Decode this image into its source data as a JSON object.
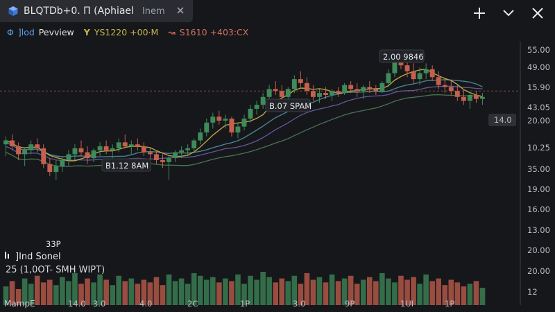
{
  "tab": {
    "title": "BLQTDb+0. Π (Aphiael",
    "subtitle": "Inem",
    "icon": "cube-icon"
  },
  "window_controls": [
    "plus-icon",
    "chevron-down-icon",
    "close-icon"
  ],
  "legend": {
    "marker": "Φ",
    "symbol": "]lod",
    "label": "Pevview",
    "ma1": "YS1220 +00·M",
    "ma2": "S1610 +403:CX"
  },
  "colors": {
    "background": "#16171b",
    "up": "#3f8b5a",
    "down": "#c6604e",
    "ma_yellow": "#c8b548",
    "ma_teal": "#4f8fa0",
    "ma_green": "#4f7f59",
    "ma_purple": "#6b5fa8",
    "ref_line": "#a35a3f",
    "price_tag": "#2e3036"
  },
  "annotations": [
    {
      "label": "2.00 9846"
    },
    {
      "label": "B.07 SPAM"
    },
    {
      "label": "B1.12 8AM"
    }
  ],
  "low_label": "33P",
  "price_axis": [
    "55.00",
    "49.00",
    "15.90",
    "43.05",
    "20.00",
    "10.25",
    "35.00",
    "19.00",
    "16.00",
    "13.00",
    "20.00",
    "20.00",
    "12"
  ],
  "last_price_tag": "14.0",
  "time_axis": [
    "14.0",
    "3.0",
    "4.0",
    "2C",
    "1P",
    "3.0",
    "9P",
    "1UI",
    "1P"
  ],
  "indicator": {
    "icon": "indicator-icon",
    "name": "]Ind Sonel",
    "values": "25 (1,0OT- SMH WIPT)"
  },
  "bottom_label": "MampE",
  "chart_data": {
    "type": "candlestick",
    "ohlc": [
      [
        58,
        62,
        52,
        60
      ],
      [
        60,
        63,
        55,
        57
      ],
      [
        57,
        59,
        50,
        53
      ],
      [
        53,
        56,
        47,
        55
      ],
      [
        55,
        60,
        53,
        58
      ],
      [
        58,
        61,
        54,
        56
      ],
      [
        56,
        58,
        46,
        48
      ],
      [
        48,
        51,
        42,
        44
      ],
      [
        44,
        50,
        40,
        47
      ],
      [
        47,
        52,
        44,
        50
      ],
      [
        50,
        55,
        47,
        53
      ],
      [
        53,
        58,
        50,
        56
      ],
      [
        56,
        60,
        52,
        54
      ],
      [
        54,
        57,
        48,
        51
      ],
      [
        51,
        56,
        49,
        55
      ],
      [
        55,
        59,
        52,
        57
      ],
      [
        57,
        60,
        53,
        55
      ],
      [
        55,
        58,
        51,
        56
      ],
      [
        56,
        61,
        54,
        59
      ],
      [
        59,
        63,
        56,
        57
      ],
      [
        57,
        60,
        53,
        58
      ],
      [
        58,
        61,
        55,
        57
      ],
      [
        57,
        59,
        52,
        54
      ],
      [
        54,
        56,
        50,
        53
      ],
      [
        53,
        55,
        48,
        50
      ],
      [
        50,
        53,
        46,
        49
      ],
      [
        49,
        52,
        40,
        51
      ],
      [
        51,
        55,
        49,
        54
      ],
      [
        54,
        57,
        51,
        55
      ],
      [
        55,
        58,
        52,
        56
      ],
      [
        56,
        61,
        54,
        60
      ],
      [
        60,
        66,
        58,
        64
      ],
      [
        64,
        71,
        62,
        69
      ],
      [
        69,
        74,
        66,
        72
      ],
      [
        72,
        75,
        68,
        70
      ],
      [
        70,
        73,
        66,
        71
      ],
      [
        71,
        72,
        62,
        64
      ],
      [
        64,
        69,
        61,
        67
      ],
      [
        67,
        73,
        65,
        71
      ],
      [
        71,
        78,
        69,
        76
      ],
      [
        76,
        80,
        73,
        78
      ],
      [
        78,
        84,
        76,
        82
      ],
      [
        82,
        88,
        79,
        86
      ],
      [
        86,
        90,
        83,
        85
      ],
      [
        85,
        88,
        80,
        82
      ],
      [
        82,
        87,
        80,
        86
      ],
      [
        86,
        93,
        84,
        91
      ],
      [
        91,
        95,
        87,
        89
      ],
      [
        89,
        92,
        83,
        85
      ],
      [
        85,
        88,
        80,
        82
      ],
      [
        82,
        86,
        79,
        84
      ],
      [
        84,
        87,
        81,
        83
      ],
      [
        83,
        86,
        80,
        85
      ],
      [
        85,
        87,
        82,
        84
      ],
      [
        84,
        89,
        83,
        88
      ],
      [
        88,
        90,
        84,
        86
      ],
      [
        86,
        89,
        82,
        85
      ],
      [
        85,
        88,
        81,
        87
      ],
      [
        87,
        90,
        84,
        86
      ],
      [
        86,
        88,
        83,
        85
      ],
      [
        85,
        90,
        84,
        89
      ],
      [
        89,
        96,
        87,
        94
      ],
      [
        94,
        104,
        92,
        102
      ],
      [
        102,
        106,
        96,
        98
      ],
      [
        98,
        103,
        92,
        95
      ],
      [
        95,
        99,
        89,
        91
      ],
      [
        91,
        97,
        88,
        94
      ],
      [
        94,
        99,
        91,
        96
      ],
      [
        96,
        98,
        90,
        92
      ],
      [
        92,
        95,
        86,
        88
      ],
      [
        88,
        91,
        84,
        87
      ],
      [
        87,
        90,
        83,
        85
      ],
      [
        85,
        88,
        80,
        82
      ],
      [
        82,
        86,
        78,
        80
      ],
      [
        80,
        84,
        76,
        83
      ],
      [
        83,
        85,
        79,
        81
      ],
      [
        81,
        84,
        78,
        82
      ]
    ],
    "volume": [
      14,
      18,
      12,
      20,
      16,
      22,
      17,
      19,
      15,
      21,
      18,
      24,
      16,
      20,
      17,
      23,
      19,
      15,
      22,
      18,
      20,
      16,
      19,
      17,
      21,
      15,
      23,
      18,
      20,
      16,
      24,
      22,
      19,
      21,
      17,
      20,
      18,
      23,
      16,
      22,
      19,
      25,
      21,
      17,
      20,
      18,
      22,
      16,
      24,
      19,
      21,
      17,
      23,
      18,
      20,
      22,
      16,
      19,
      21,
      18,
      24,
      20,
      17,
      22,
      19,
      21,
      16,
      23,
      18,
      20,
      15,
      19,
      17,
      14,
      16,
      18,
      13
    ],
    "price_range": [
      10,
      110
    ],
    "grid": false
  }
}
